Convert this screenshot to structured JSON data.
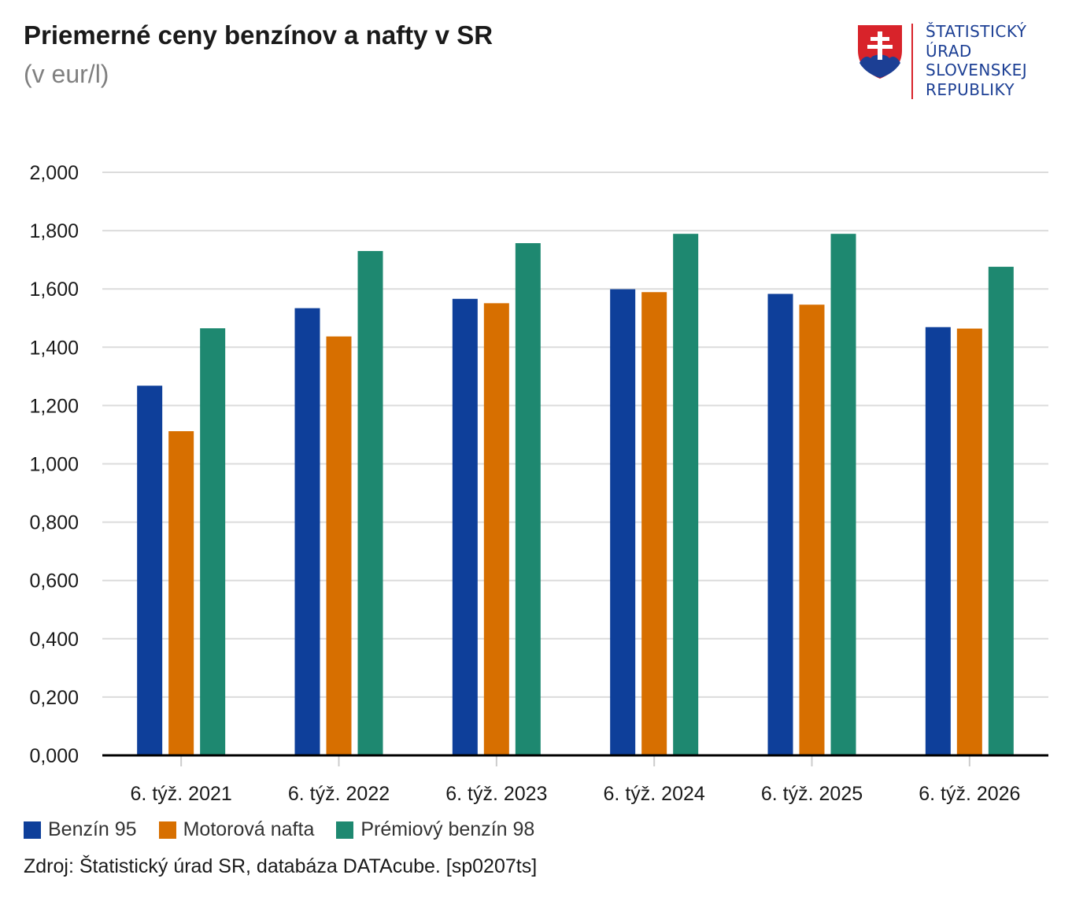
{
  "title": "Priemerné ceny benzínov a nafty v SR",
  "subtitle": "(v eur/l)",
  "logo": {
    "lines": [
      "ŠTATISTICKÝ",
      "ÚRAD",
      "SLOVENSKEJ",
      "REPUBLIKY"
    ],
    "name": "slovak-coat-of-arms-icon"
  },
  "source": "Zdroj: Štatistický úrad SR, databáza DATAcube. [sp0207ts]",
  "chart_data": {
    "type": "bar",
    "title": "Priemerné ceny benzínov a nafty v SR",
    "subtitle": "(v eur/l)",
    "categories": [
      "6. týž. 2021",
      "6. týž. 2022",
      "6. týž. 2023",
      "6. týž. 2024",
      "6. týž. 2025",
      "6. týž. 2026"
    ],
    "series": [
      {
        "name": "Benzín 95",
        "color": "#0e3f9a",
        "values": [
          1.268,
          1.534,
          1.566,
          1.599,
          1.583,
          1.469
        ]
      },
      {
        "name": "Motorová nafta",
        "color": "#d76f00",
        "values": [
          1.112,
          1.437,
          1.551,
          1.589,
          1.546,
          1.464
        ]
      },
      {
        "name": "Prémiový benzín 98",
        "color": "#1e8870",
        "values": [
          1.465,
          1.73,
          1.757,
          1.789,
          1.789,
          1.676
        ]
      }
    ],
    "yticks": [
      "0,000",
      "0,200",
      "0,400",
      "0,600",
      "0,800",
      "1,000",
      "1,200",
      "1,400",
      "1,600",
      "1,800",
      "2,000"
    ],
    "ylim": [
      0,
      2.0
    ],
    "grid": true,
    "legend": "bottom-left"
  }
}
